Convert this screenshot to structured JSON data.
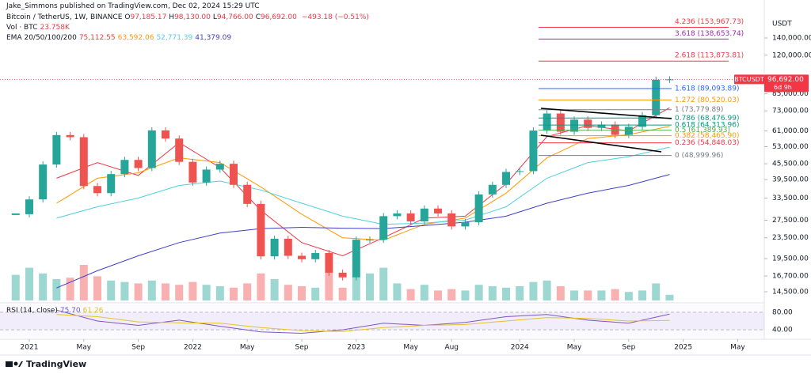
{
  "header": {
    "author_line": "Jake_Simmons published on TradingView.com, Dec 02, 2024 15:29 UTC",
    "symbol": "Bitcoin / TetherUS, 1W, BINANCE",
    "ohlc": [
      {
        "key": "O",
        "value": "97,185.17"
      },
      {
        "key": "H",
        "value": "98,130.00"
      },
      {
        "key": "L",
        "value": "94,766.00"
      },
      {
        "key": "C",
        "value": "96,692.00"
      }
    ],
    "change": "−493.18 (−0.51%)",
    "volume_label": "Vol · BTC",
    "volume_value": "23.758K",
    "ema_label": "EMA 20/50/100/200"
  },
  "chart_data": {
    "type": "candlestick",
    "log": true,
    "up_color": "#26a69a",
    "down_color": "#ef5350",
    "x": [
      -1,
      0,
      1,
      2,
      3,
      4,
      5,
      6,
      7,
      8,
      9,
      10,
      11,
      12,
      13,
      14,
      15,
      16,
      17,
      18,
      19,
      20,
      21,
      22,
      23,
      24,
      25,
      26,
      27,
      28,
      29,
      30,
      31,
      32,
      33,
      34,
      35,
      36,
      37,
      38,
      39,
      40,
      41,
      42,
      43,
      44,
      45,
      46,
      47
    ],
    "values": [
      29000,
      33100,
      45200,
      58800,
      57700,
      37300,
      35000,
      41500,
      47100,
      43800,
      61300,
      57000,
      46300,
      38500,
      43200,
      45500,
      37700,
      31800,
      19900,
      23300,
      20000,
      19400,
      20500,
      17200,
      16500,
      23100,
      23100,
      28500,
      29200,
      27200,
      30500,
      29200,
      26000,
      27000,
      34600,
      37700,
      42300,
      42600,
      61200,
      71300,
      60600,
      67500,
      62700,
      64600,
      58900,
      63300,
      70200,
      96400,
      96692
    ],
    "volume": [
      180,
      230,
      190,
      150,
      160,
      250,
      170,
      140,
      130,
      120,
      140,
      120,
      110,
      130,
      110,
      100,
      90,
      120,
      190,
      150,
      110,
      100,
      90,
      200,
      90,
      170,
      190,
      230,
      120,
      80,
      110,
      70,
      80,
      70,
      110,
      100,
      90,
      100,
      130,
      140,
      100,
      70,
      70,
      70,
      80,
      60,
      70,
      120,
      40
    ],
    "ylim": [
      13420,
      196500
    ],
    "xlim": [
      -2.15,
      53.95
    ],
    "axis_unit": "USDT",
    "yticks": [
      {
        "value": 140000,
        "label": "140,000.00"
      },
      {
        "value": 120000,
        "label": "120,000.00"
      },
      {
        "value": 85000,
        "label": "85,000.00"
      },
      {
        "value": 73000,
        "label": "73,000.00"
      },
      {
        "value": 61000,
        "label": "61,000.00"
      },
      {
        "value": 53000,
        "label": "53,000.00"
      },
      {
        "value": 45500,
        "label": "45,500.00"
      },
      {
        "value": 39500,
        "label": "39,500.00"
      },
      {
        "value": 33500,
        "label": "33,500.00"
      },
      {
        "value": 27500,
        "label": "27,500.00"
      },
      {
        "value": 23500,
        "label": "23,500.00"
      },
      {
        "value": 19500,
        "label": "19,500.00"
      },
      {
        "value": 16700,
        "label": "16,700.00"
      },
      {
        "value": 14500,
        "label": "14,500.00"
      }
    ],
    "xticks": [
      {
        "value": 0,
        "label": "2021"
      },
      {
        "value": 4,
        "label": "May"
      },
      {
        "value": 8,
        "label": "Sep"
      },
      {
        "value": 12,
        "label": "2022"
      },
      {
        "value": 16,
        "label": "May"
      },
      {
        "value": 20,
        "label": "Sep"
      },
      {
        "value": 24,
        "label": "2023"
      },
      {
        "value": 28,
        "label": "May"
      },
      {
        "value": 31,
        "label": "Aug"
      },
      {
        "value": 36,
        "label": "2024"
      },
      {
        "value": 40,
        "label": "May"
      },
      {
        "value": 44,
        "label": "Sep"
      },
      {
        "value": 48,
        "label": "2025"
      },
      {
        "value": 52,
        "label": "May"
      }
    ],
    "series": [
      {
        "color": "#f23645",
        "value_label": "75,112.55",
        "x": [
          2,
          5,
          8,
          11,
          14,
          17,
          20,
          23,
          26,
          29,
          32,
          35,
          38,
          41,
          44,
          47
        ],
        "values": [
          40000,
          46000,
          41000,
          55000,
          44000,
          30000,
          22500,
          20000,
          23500,
          28000,
          28500,
          38000,
          58000,
          64000,
          61000,
          75112.55
        ]
      },
      {
        "color": "#ff9800",
        "value_label": "63,592.06",
        "x": [
          2,
          5,
          8,
          11,
          14,
          17,
          20,
          23,
          26,
          29,
          32,
          35,
          38,
          41,
          44,
          47
        ],
        "values": [
          32000,
          40000,
          42000,
          48000,
          46000,
          37000,
          29000,
          23500,
          23000,
          26500,
          28000,
          35000,
          48000,
          57000,
          59000,
          63592.06
        ]
      },
      {
        "color": "#4dd0e1",
        "value_label": "52,771.39",
        "x": [
          2,
          5,
          8,
          11,
          14,
          17,
          20,
          23,
          26,
          29,
          32,
          35,
          38,
          41,
          44,
          47
        ],
        "values": [
          28000,
          31000,
          33500,
          37500,
          39000,
          36000,
          32000,
          28500,
          26500,
          26800,
          27500,
          31000,
          40000,
          46000,
          48500,
          52771.39
        ]
      },
      {
        "color": "#3f3fc8",
        "value_label": "41,379.09",
        "x": [
          2,
          5,
          8,
          11,
          14,
          17,
          20,
          23,
          26,
          29,
          32,
          35,
          38,
          41,
          44,
          47
        ],
        "values": [
          15000,
          17500,
          20000,
          22500,
          24500,
          25500,
          25800,
          25600,
          25500,
          26200,
          27000,
          28500,
          32000,
          35000,
          37500,
          41379.09
        ]
      }
    ],
    "price_tag": {
      "symbol": "BTCUSDT",
      "price": "96,692.00",
      "countdown": "6d 9h"
    },
    "fib_levels": [
      {
        "label": "4.236 (153,967.73)",
        "value": 153967.73,
        "color": "#f23645"
      },
      {
        "label": "3.618 (138,653.74)",
        "value": 138653.74,
        "color": "#9c27b0"
      },
      {
        "label": "2.618 (113,873.81)",
        "value": 113873.81,
        "color": "#f23645"
      },
      {
        "label": "1.618 (89,093.89)",
        "value": 89093.89,
        "color": "#2962ff"
      },
      {
        "label": "1.272 (80,520.03)",
        "value": 80520.03,
        "color": "#ff9800"
      },
      {
        "label": "1 (73,779.89)",
        "value": 73779.89,
        "color": "#787b86"
      },
      {
        "label": "0.786 (68,476.99)",
        "value": 68476.99,
        "color": "#089981"
      },
      {
        "label": "0.618 (64,313.96)",
        "value": 64313.96,
        "color": "#089981"
      },
      {
        "label": "0.5 (61,389.93)",
        "value": 61389.93,
        "color": "#4caf50"
      },
      {
        "label": "0.382 (58,465.90)",
        "value": 58465.9,
        "color": "#ff9800"
      },
      {
        "label": "0.236 (54,848.03)",
        "value": 54848.03,
        "color": "#f23645"
      },
      {
        "label": "0 (48,999.96)",
        "value": 48999.96,
        "color": "#787b86"
      }
    ],
    "rsi": {
      "label": "RSI (14, close)",
      "value_label": "75.70",
      "ma_label": "61.26",
      "color": "#7e57c2",
      "ma_color": "#e6c229",
      "ylim": [
        22,
        98
      ],
      "yticks": [
        {
          "value": 80,
          "label": "80.00"
        },
        {
          "value": 40,
          "label": "40.00"
        }
      ],
      "x": [
        2,
        5,
        8,
        11,
        14,
        17,
        20,
        23,
        26,
        29,
        32,
        35,
        38,
        41,
        44,
        47
      ],
      "values": [
        85,
        60,
        50,
        62,
        48,
        35,
        32,
        40,
        55,
        50,
        57,
        70,
        75,
        62,
        55,
        75.7
      ],
      "ma": [
        75,
        70,
        58,
        56,
        55,
        45,
        38,
        36,
        45,
        50,
        52,
        60,
        68,
        66,
        60,
        61.26
      ]
    }
  },
  "footer": {
    "brand": "TradingView"
  }
}
